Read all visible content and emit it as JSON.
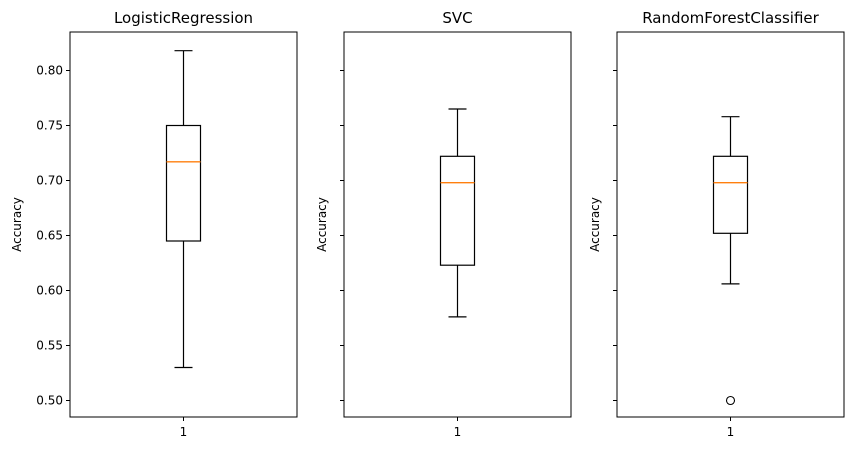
{
  "chart_data": [
    {
      "type": "box",
      "title": "LogisticRegression",
      "xlabel": "",
      "ylabel": "Accuracy",
      "categories": [
        "1"
      ],
      "ylim": [
        0.485,
        0.835
      ],
      "yticks": [
        "0.50",
        "0.55",
        "0.60",
        "0.65",
        "0.70",
        "0.75",
        "0.80"
      ],
      "boxes": [
        {
          "whisker_low": 0.53,
          "q1": 0.645,
          "median": 0.717,
          "q3": 0.75,
          "whisker_high": 0.818,
          "outliers": []
        }
      ]
    },
    {
      "type": "box",
      "title": "SVC",
      "xlabel": "",
      "ylabel": "Accuracy",
      "categories": [
        "1"
      ],
      "ylim": [
        0.485,
        0.835
      ],
      "yticks": [],
      "boxes": [
        {
          "whisker_low": 0.576,
          "q1": 0.623,
          "median": 0.698,
          "q3": 0.722,
          "whisker_high": 0.765,
          "outliers": []
        }
      ]
    },
    {
      "type": "box",
      "title": "RandomForestClassifier",
      "xlabel": "",
      "ylabel": "Accuracy",
      "categories": [
        "1"
      ],
      "ylim": [
        0.485,
        0.835
      ],
      "yticks": [],
      "boxes": [
        {
          "whisker_low": 0.606,
          "q1": 0.652,
          "median": 0.698,
          "q3": 0.722,
          "whisker_high": 0.758,
          "outliers": [
            0.5
          ]
        }
      ]
    }
  ],
  "colors": {
    "box": "#000000",
    "median": "#ff7f0e",
    "outlier": "#000000"
  }
}
